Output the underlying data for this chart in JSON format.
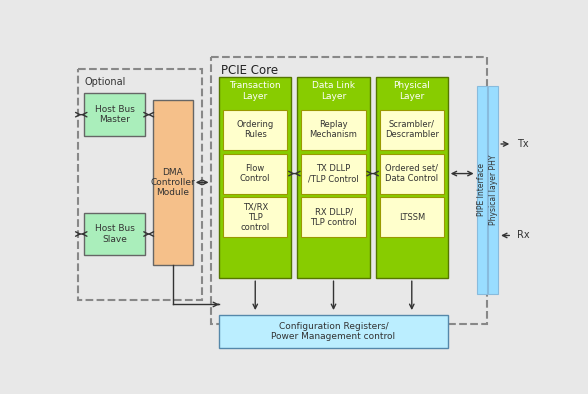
{
  "title": "PCIE Core",
  "bg_color": "#e8e8e8",
  "optional_label": "Optional",
  "dma_bg": "#f5c08a",
  "host_bg": "#aaeebb",
  "layer_bg": "#88cc00",
  "inner_cell_bg": "#ffffcc",
  "config_bg": "#bbeeff",
  "pipe_bg": "#99ddff",
  "layers": [
    "Transaction\nLayer",
    "Data Link\nLayer",
    "Physical\nLayer"
  ],
  "row1": [
    "Ordering\nRules",
    "Replay\nMechanism",
    "Scrambler/\nDescrambler"
  ],
  "row2": [
    "Flow\nControl",
    "TX DLLP\n/TLP Control",
    "Ordered set/\nData Control"
  ],
  "row3": [
    "TX/RX\nTLP\ncontrol",
    "RX DLLP/\nTLP control",
    "LTSSM"
  ],
  "config_text": "Configuration Registers/\nPower Management control",
  "pipe_text": "PIPE Interface",
  "phy_text": "Physical layer PHY",
  "tx_label": "Tx",
  "rx_label": "Rx",
  "host_master": "Host Bus\nMaster",
  "host_slave": "Host Bus\nSlave",
  "dma_label": "DMA\nController\nModule"
}
